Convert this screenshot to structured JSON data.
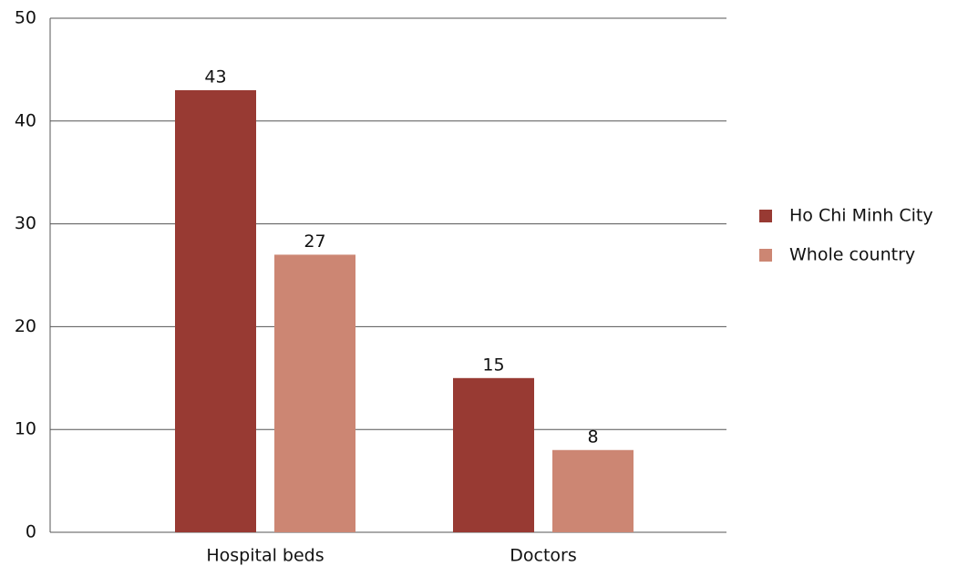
{
  "chart_data": {
    "type": "bar",
    "categories": [
      "Hospital beds",
      "Doctors"
    ],
    "series": [
      {
        "name": "Ho Chi Minh City",
        "color": "#983a33",
        "values": [
          43,
          15
        ]
      },
      {
        "name": "Whole country",
        "color": "#cc8673",
        "values": [
          27,
          8
        ]
      }
    ],
    "ylim": [
      0,
      50
    ],
    "yticks": [
      0,
      10,
      20,
      30,
      40,
      50
    ],
    "grid": true,
    "legend": "right"
  }
}
